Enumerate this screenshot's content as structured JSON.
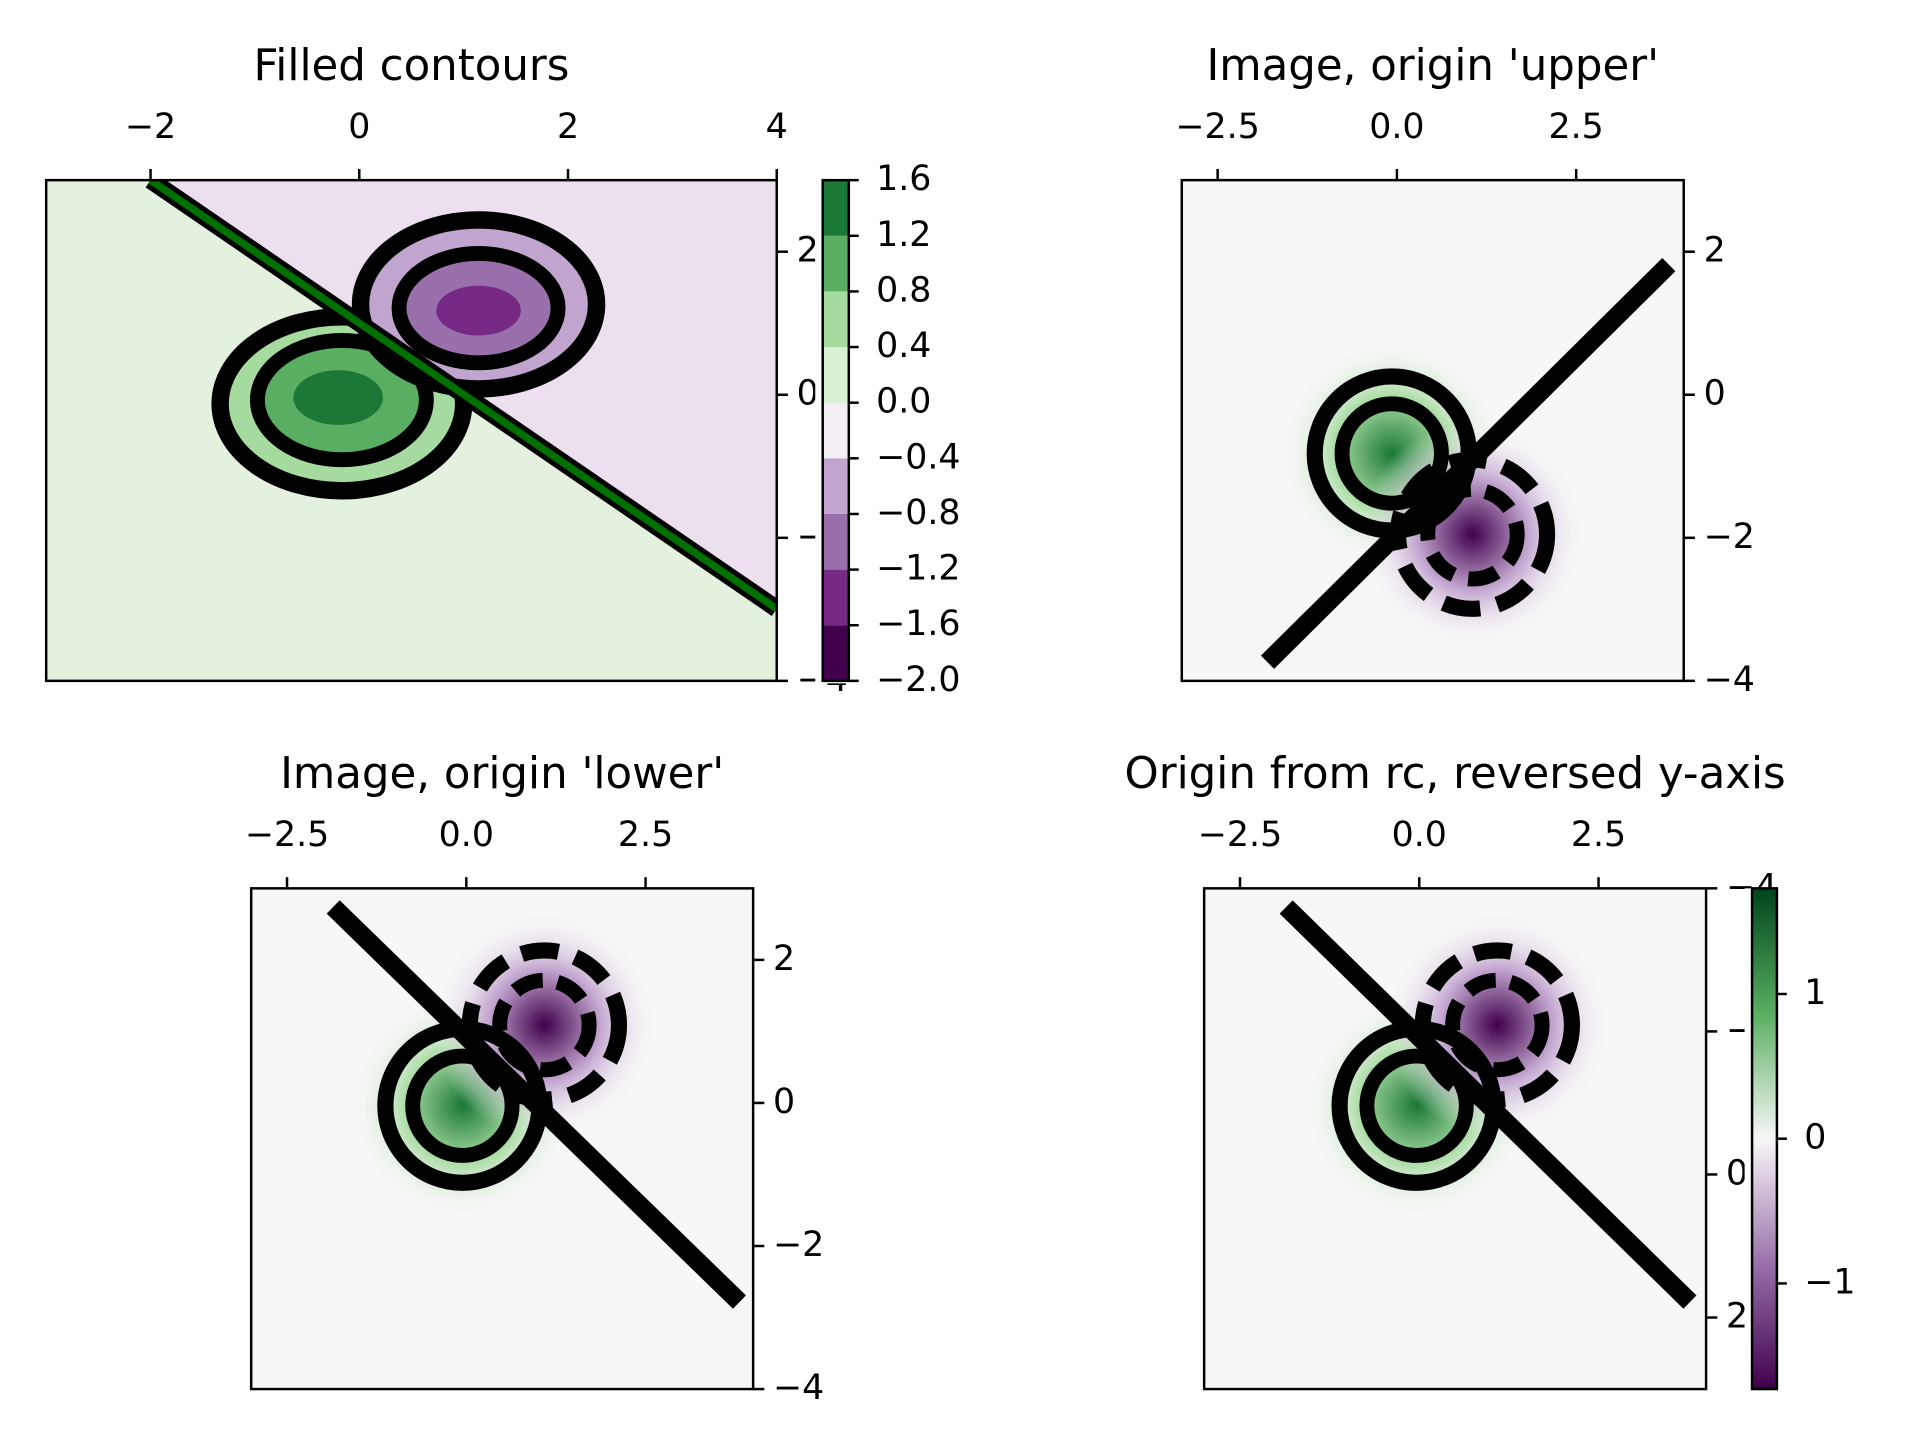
{
  "chart_data": [
    {
      "type": "contourf",
      "title": "Filled contours",
      "xlim": [
        -3,
        4
      ],
      "ylim": [
        -4,
        3
      ],
      "xticks": [
        {
          "value": -2,
          "label": "−2"
        },
        0,
        2,
        4
      ],
      "yticks": [
        {
          "value": -4,
          "label": "−4"
        },
        {
          "value": -2,
          "label": "−2"
        },
        0,
        2
      ],
      "colorbar": {
        "ticks": [
          {
            "value": -2.0,
            "label": "−2.0"
          },
          {
            "value": -1.6,
            "label": "−1.6"
          },
          {
            "value": -1.2,
            "label": "−1.2"
          },
          {
            "value": -0.8,
            "label": "−0.8"
          },
          {
            "value": -0.4,
            "label": "−0.4"
          },
          {
            "value": 0,
            "label": "0.0"
          },
          0.4,
          0.8,
          1.2,
          1.6
        ],
        "colors": [
          "#40004b",
          "#762a83",
          "#9970ab",
          "#c2a5cf",
          "#f4eef5",
          "#d9f0d3",
          "#a6dba0",
          "#5aae61",
          "#1b7837"
        ]
      }
    },
    {
      "type": "image",
      "title": "Image, origin 'upper'",
      "xlim": [
        -3,
        4
      ],
      "ylim": [
        -4,
        3
      ],
      "xticks": [
        {
          "value": -2.5,
          "label": "−2.5"
        },
        {
          "value": 0,
          "label": "0.0"
        },
        2.5
      ],
      "yticks": [
        {
          "value": -4,
          "label": "−4"
        },
        {
          "value": -2,
          "label": "−2"
        },
        0,
        2
      ]
    },
    {
      "type": "image",
      "title": "Image, origin 'lower'",
      "xlim": [
        -3,
        4
      ],
      "ylim": [
        -4,
        3
      ],
      "xticks": [
        {
          "value": -2.5,
          "label": "−2.5"
        },
        {
          "value": 0,
          "label": "0.0"
        },
        2.5
      ],
      "yticks": [
        {
          "value": -4,
          "label": "−4"
        },
        {
          "value": -2,
          "label": "−2"
        },
        0,
        2
      ]
    },
    {
      "type": "image",
      "title": "Origin from rc, reversed y-axis",
      "xlim": [
        -3,
        4
      ],
      "ylim": [
        3,
        -4
      ],
      "xticks": [
        {
          "value": -2.5,
          "label": "−2.5"
        },
        {
          "value": 0,
          "label": "0.0"
        },
        2.5
      ],
      "yticks": [
        {
          "value": -4,
          "label": "−4"
        },
        {
          "value": -2,
          "label": "−2"
        },
        0,
        2
      ],
      "colorbar": {
        "lim": [
          -1.73,
          1.73
        ],
        "ticks": [
          {
            "value": -1,
            "label": "−1"
          },
          0,
          1
        ]
      }
    }
  ]
}
